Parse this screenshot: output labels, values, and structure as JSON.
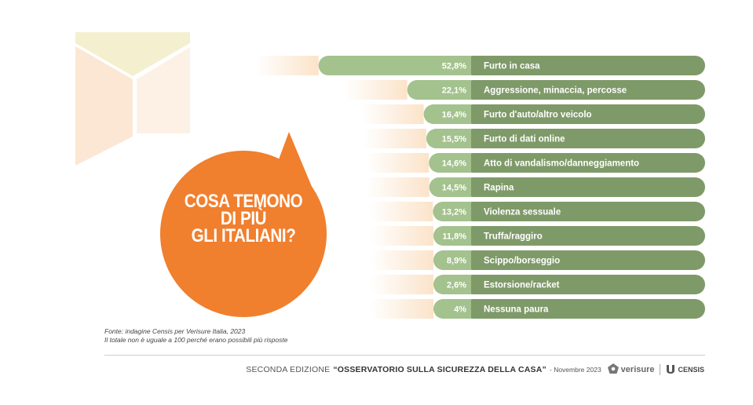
{
  "bubble": {
    "line1": "COSA TEMONO",
    "line2": "DI PIÙ",
    "line3": "GLI ITALIANI?"
  },
  "chart_data": {
    "type": "bar",
    "orientation": "horizontal",
    "categories": [
      "Furto in casa",
      "Aggressione, minaccia, percosse",
      "Furto d'auto/altro veicolo",
      "Furto di dati online",
      "Atto di vandalismo/danneggiamento",
      "Rapina",
      "Violenza sessuale",
      "Truffa/raggiro",
      "Scippo/borseggio",
      "Estorsione/racket",
      "Nessuna paura"
    ],
    "values": [
      52.8,
      22.1,
      16.4,
      15.5,
      14.6,
      14.5,
      13.2,
      11.8,
      8.9,
      2.6,
      4
    ],
    "value_labels": [
      "52,8%",
      "22,1%",
      "16,4%",
      "15,5%",
      "14,6%",
      "14,5%",
      "13,2%",
      "11,8%",
      "8,9%",
      "2,6%",
      "4%"
    ],
    "colors": {
      "value_bar": "#a3c28d",
      "label_bar": "#7f9a69",
      "fade": "#fbe3c9"
    }
  },
  "source": {
    "line1": "Fonte: indagine Censis per Verisure Italia, 2023",
    "line2": "Il totale non è uguale a 100 perché erano possibili più risposte"
  },
  "footer": {
    "edition": "SECONDA EDIZIONE",
    "observatory": "“OSSERVATORIO SULLA SICUREZZA DELLA CASA”",
    "date": "- Novembre 2023",
    "brand1": "verisure",
    "brand2": "CENSIS",
    "icon1": "verisure-logo-icon",
    "icon2": "censis-logo-icon"
  },
  "colors": {
    "accent": "#f07f2e",
    "cube_light": "#f4efcf",
    "cube_dark": "#fbe7d4"
  }
}
